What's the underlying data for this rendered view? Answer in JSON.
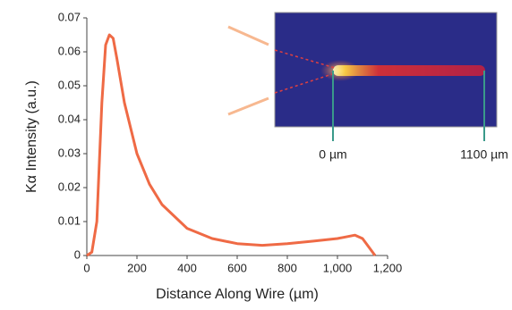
{
  "chart_data": {
    "type": "line",
    "x_label": "Distance Along Wire (µm)",
    "y_label": "Kα Intensity (a.u.)",
    "x": [
      0,
      20,
      40,
      60,
      75,
      90,
      105,
      120,
      150,
      200,
      250,
      300,
      400,
      500,
      600,
      700,
      800,
      900,
      1000,
      1070,
      1100,
      1130,
      1150
    ],
    "series": [
      {
        "color": "#ef6a45",
        "values": [
          0,
          0.001,
          0.01,
          0.045,
          0.062,
          0.065,
          0.064,
          0.058,
          0.045,
          0.03,
          0.021,
          0.015,
          0.008,
          0.005,
          0.0035,
          0.003,
          0.0035,
          0.0042,
          0.005,
          0.006,
          0.005,
          0.002,
          0
        ]
      }
    ],
    "xlim": [
      0,
      1200
    ],
    "ylim": [
      0,
      0.07
    ],
    "xticks": [
      0,
      200,
      400,
      600,
      800,
      {
        "value": 1000,
        "label": "1,000"
      },
      {
        "value": 1200,
        "label": "1,200"
      }
    ],
    "yticks": [
      0,
      0.01,
      0.02,
      0.03,
      0.04,
      0.05,
      0.06,
      0.07
    ],
    "inset_labels": [
      "0 µm",
      "1100 µm"
    ]
  }
}
